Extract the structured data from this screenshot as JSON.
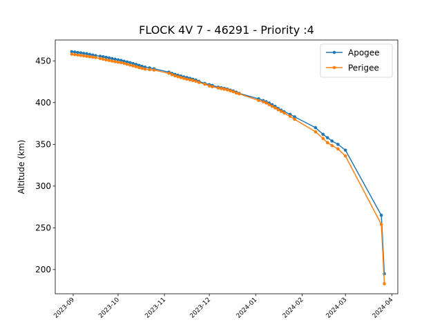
{
  "chart_data": {
    "type": "line",
    "title": "FLOCK 4V 7 - 46291 - Priority :4",
    "xlabel": "",
    "ylabel": "Altitude (km)",
    "x_axis_type": "date",
    "xlim": [
      "2023-08-20",
      "2024-04-05"
    ],
    "ylim": [
      171,
      475
    ],
    "y_ticks": [
      200,
      250,
      300,
      350,
      400,
      450
    ],
    "x_ticks": [
      "2023-09-01",
      "2023-10-01",
      "2023-11-01",
      "2023-12-01",
      "2024-01-01",
      "2024-02-01",
      "2024-03-01",
      "2024-04-01"
    ],
    "x_tick_labels": [
      "2023-09",
      "2023-10",
      "2023-11",
      "2023-12",
      "2024-01",
      "2024-02",
      "2024-03",
      "2024-04"
    ],
    "grid": false,
    "legend_position": "top-right",
    "series": [
      {
        "name": "Apogee",
        "color": "#1f77b4",
        "points": [
          [
            "2023-08-31",
            461
          ],
          [
            "2023-09-02",
            460.5
          ],
          [
            "2023-09-04",
            460
          ],
          [
            "2023-09-06",
            459.6
          ],
          [
            "2023-09-08",
            459
          ],
          [
            "2023-09-10",
            458.5
          ],
          [
            "2023-09-12",
            457.8
          ],
          [
            "2023-09-14",
            457
          ],
          [
            "2023-09-16",
            456.3
          ],
          [
            "2023-09-19",
            455.5
          ],
          [
            "2023-09-21",
            455
          ],
          [
            "2023-09-23",
            454.2
          ],
          [
            "2023-09-25",
            453.5
          ],
          [
            "2023-09-27",
            452.8
          ],
          [
            "2023-09-29",
            452
          ],
          [
            "2023-10-01",
            451.2
          ],
          [
            "2023-10-03",
            450.5
          ],
          [
            "2023-10-05",
            449.6
          ],
          [
            "2023-10-07",
            448.7
          ],
          [
            "2023-10-09",
            447.8
          ],
          [
            "2023-10-11",
            446.8
          ],
          [
            "2023-10-13",
            445.7
          ],
          [
            "2023-10-15",
            444.6
          ],
          [
            "2023-10-17",
            443.5
          ],
          [
            "2023-10-19",
            442.5
          ],
          [
            "2023-10-22",
            441.6
          ],
          [
            "2023-10-25",
            440.5
          ],
          [
            "2023-11-04",
            436.5
          ],
          [
            "2023-11-06",
            435
          ],
          [
            "2023-11-08",
            433.8
          ],
          [
            "2023-11-10",
            432.8
          ],
          [
            "2023-11-12",
            431.8
          ],
          [
            "2023-11-14",
            430.8
          ],
          [
            "2023-11-16",
            430
          ],
          [
            "2023-11-18",
            429
          ],
          [
            "2023-11-20",
            428
          ],
          [
            "2023-11-22",
            427
          ],
          [
            "2023-11-24",
            425.5
          ],
          [
            "2023-11-28",
            423
          ],
          [
            "2023-12-01",
            421.5
          ],
          [
            "2023-12-03",
            420.5
          ],
          [
            "2023-12-07",
            418.5
          ],
          [
            "2023-12-09",
            417.8
          ],
          [
            "2023-12-11",
            417
          ],
          [
            "2023-12-13",
            416.2
          ],
          [
            "2023-12-15",
            415
          ],
          [
            "2023-12-17",
            414
          ],
          [
            "2023-12-19",
            412.5
          ],
          [
            "2023-12-21",
            411
          ],
          [
            "2024-01-03",
            404.5
          ],
          [
            "2024-01-06",
            402.5
          ],
          [
            "2024-01-08",
            401
          ],
          [
            "2024-01-10",
            399.5
          ],
          [
            "2024-01-12",
            397.5
          ],
          [
            "2024-01-14",
            395.5
          ],
          [
            "2024-01-16",
            393
          ],
          [
            "2024-01-18",
            391
          ],
          [
            "2024-01-20",
            389
          ],
          [
            "2024-01-24",
            386
          ],
          [
            "2024-01-27",
            383
          ],
          [
            "2024-02-10",
            370
          ],
          [
            "2024-02-15",
            362
          ],
          [
            "2024-02-18",
            358
          ],
          [
            "2024-02-21",
            354
          ],
          [
            "2024-02-25",
            350
          ],
          [
            "2024-03-01",
            343
          ],
          [
            "2024-03-25",
            265
          ],
          [
            "2024-03-27",
            195
          ]
        ]
      },
      {
        "name": "Perigee",
        "color": "#ff7f0e",
        "points": [
          [
            "2023-08-31",
            458
          ],
          [
            "2023-09-02",
            457.5
          ],
          [
            "2023-09-04",
            457
          ],
          [
            "2023-09-06",
            456.5
          ],
          [
            "2023-09-08",
            456
          ],
          [
            "2023-09-10",
            455.5
          ],
          [
            "2023-09-12",
            455
          ],
          [
            "2023-09-14",
            454.5
          ],
          [
            "2023-09-16",
            454
          ],
          [
            "2023-09-19",
            452.8
          ],
          [
            "2023-09-21",
            452
          ],
          [
            "2023-09-23",
            451.2
          ],
          [
            "2023-09-25",
            450.5
          ],
          [
            "2023-09-27",
            449.8
          ],
          [
            "2023-09-29",
            449
          ],
          [
            "2023-10-01",
            448.4
          ],
          [
            "2023-10-03",
            447.8
          ],
          [
            "2023-10-05",
            447
          ],
          [
            "2023-10-07",
            446
          ],
          [
            "2023-10-09",
            445
          ],
          [
            "2023-10-11",
            444
          ],
          [
            "2023-10-13",
            443
          ],
          [
            "2023-10-15",
            442
          ],
          [
            "2023-10-17",
            441
          ],
          [
            "2023-10-19",
            440.2
          ],
          [
            "2023-10-22",
            439.5
          ],
          [
            "2023-10-25",
            439
          ],
          [
            "2023-11-04",
            435
          ],
          [
            "2023-11-06",
            433.5
          ],
          [
            "2023-11-08",
            432
          ],
          [
            "2023-11-10",
            431
          ],
          [
            "2023-11-12",
            430
          ],
          [
            "2023-11-14",
            429
          ],
          [
            "2023-11-16",
            428
          ],
          [
            "2023-11-18",
            427.2
          ],
          [
            "2023-11-20",
            426.5
          ],
          [
            "2023-11-22",
            425.5
          ],
          [
            "2023-11-24",
            424.2
          ],
          [
            "2023-11-28",
            422
          ],
          [
            "2023-12-01",
            420
          ],
          [
            "2023-12-03",
            419
          ],
          [
            "2023-12-07",
            417.5
          ],
          [
            "2023-12-09",
            416.8
          ],
          [
            "2023-12-11",
            416
          ],
          [
            "2023-12-13",
            415.2
          ],
          [
            "2023-12-15",
            414.2
          ],
          [
            "2023-12-17",
            413
          ],
          [
            "2023-12-19",
            411.5
          ],
          [
            "2023-12-21",
            410.5
          ],
          [
            "2024-01-03",
            402.5
          ],
          [
            "2024-01-06",
            401
          ],
          [
            "2024-01-08",
            399.5
          ],
          [
            "2024-01-10",
            397.5
          ],
          [
            "2024-01-12",
            395.5
          ],
          [
            "2024-01-14",
            393.5
          ],
          [
            "2024-01-16",
            391.5
          ],
          [
            "2024-01-18",
            389.5
          ],
          [
            "2024-01-20",
            387.5
          ],
          [
            "2024-01-24",
            383.5
          ],
          [
            "2024-01-27",
            380
          ],
          [
            "2024-02-10",
            365
          ],
          [
            "2024-02-15",
            357
          ],
          [
            "2024-02-18",
            352
          ],
          [
            "2024-02-21",
            348.5
          ],
          [
            "2024-02-25",
            344.5
          ],
          [
            "2024-03-01",
            336
          ],
          [
            "2024-03-25",
            254
          ],
          [
            "2024-03-27",
            183
          ]
        ]
      }
    ]
  }
}
